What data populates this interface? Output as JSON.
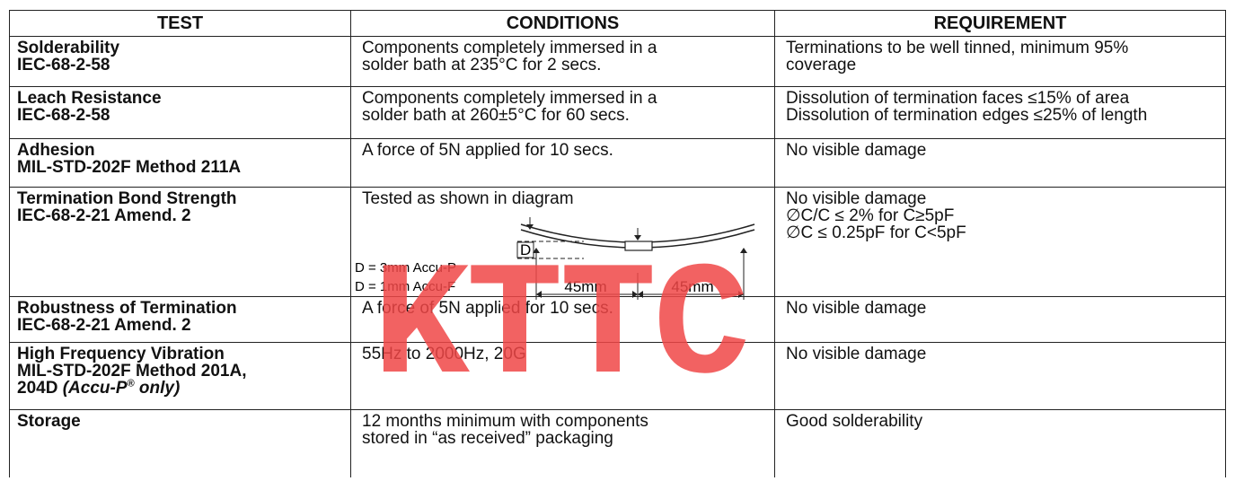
{
  "table": {
    "header": [
      "TEST",
      "CONDITIONS",
      "REQUIREMENT"
    ],
    "rows": [
      {
        "test": [
          "Solderability",
          "IEC-68-2-58"
        ],
        "conditions": [
          "Components completely immersed in a",
          "solder bath at 235°C for 2 secs."
        ],
        "requirement": [
          "Terminations to be well tinned, minimum 95%",
          "coverage"
        ]
      },
      {
        "test": [
          "Leach Resistance",
          "IEC-68-2-58"
        ],
        "conditions": [
          "Components completely immersed in a",
          "solder bath at 260±5°C for 60 secs."
        ],
        "requirement": [
          "Dissolution of termination faces ≤15% of area",
          "Dissolution of termination edges ≤25% of length"
        ]
      },
      {
        "test": [
          "Adhesion",
          "MIL-STD-202F Method 211A"
        ],
        "conditions": [
          "A force of 5N applied for 10 secs."
        ],
        "requirement": [
          "No visible damage"
        ]
      },
      {
        "test": [
          "Termination Bond Strength",
          "IEC-68-2-21 Amend. 2"
        ],
        "conditions": [
          "Tested as shown in diagram"
        ],
        "requirement": [
          "No visible damage",
          "∅C/C ≤ 2% for C≥5pF",
          "∅C ≤ 0.25pF for C<5pF"
        ]
      },
      {
        "test": [
          "Robustness of Termination",
          "IEC-68-2-21 Amend. 2"
        ],
        "conditions": [
          "A force of 5N applied for 10 secs."
        ],
        "requirement": [
          "No visible damage"
        ]
      },
      {
        "test": [
          "High Frequency Vibration",
          "MIL-STD-202F Method 201A,"
        ],
        "test_last": {
          "text": "204D",
          "italic": "(Accu-P",
          "sup": "®",
          "italic_end": " only)"
        },
        "conditions": [
          "55Hz to 2000Hz, 20G"
        ],
        "requirement": [
          "No visible damage"
        ]
      },
      {
        "test": [
          "Storage"
        ],
        "conditions": [
          "12 months minimum with components",
          "stored in “as received” packaging"
        ],
        "requirement": [
          "Good solderability"
        ]
      }
    ]
  },
  "diagram": {
    "d_label": "D",
    "notes": [
      "D = 3mm Accu-P",
      "D = 1mm Accu-F"
    ],
    "spans": [
      "45mm",
      "45mm"
    ]
  },
  "watermark": "KTTC"
}
